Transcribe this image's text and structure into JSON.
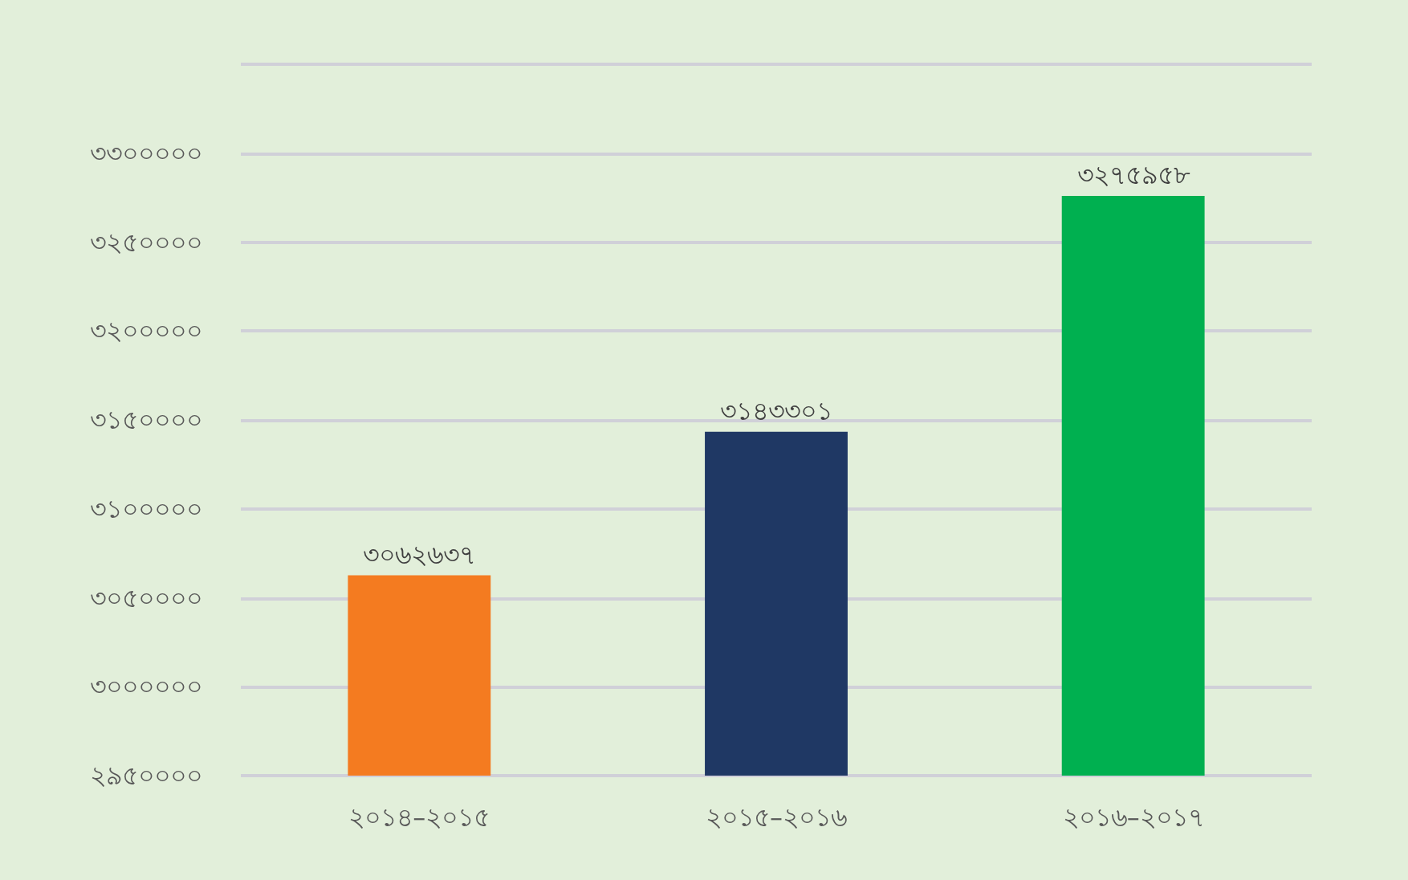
{
  "chart_data": {
    "type": "bar",
    "categories": [
      "২০১৪–২০১৫",
      "২০১৫–২০১৬",
      "২০১৬–২০১৭"
    ],
    "values": [
      3062637,
      3143301,
      3275958
    ],
    "colors": [
      "#f47b20",
      "#1f3864",
      "#00b050"
    ],
    "value_labels": [
      "৩০৬২৬৩৭",
      "৩১৪৩৩০১",
      "৩২৭৫৯৫৮"
    ],
    "ylim": [
      2950000,
      3350000
    ],
    "yticks": [
      {
        "value": 2950000,
        "label": "২৯৫০০০০"
      },
      {
        "value": 3000000,
        "label": "৩০০০০০০"
      },
      {
        "value": 3050000,
        "label": "৩০৫০০০০"
      },
      {
        "value": 3100000,
        "label": "৩১০০০০০"
      },
      {
        "value": 3150000,
        "label": "৩১৫০০০০"
      },
      {
        "value": 3200000,
        "label": "৩২০০০০০"
      },
      {
        "value": 3250000,
        "label": "৩২৫০০০০"
      },
      {
        "value": 3300000,
        "label": "৩৩০০০০০"
      },
      {
        "value": 3350000,
        "label": null
      }
    ],
    "grid": "y"
  }
}
